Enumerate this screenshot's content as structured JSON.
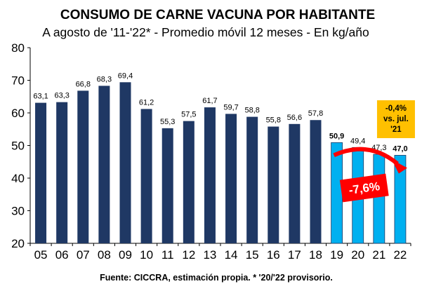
{
  "title": "CONSUMO DE CARNE VACUNA POR HABITANTE",
  "subtitle": "A agosto de '11-'22* - Promedio móvil 12 meses -  En kg/año",
  "source": "Fuente: CICCRA, estimación propia. * '20/'22 provisorio.",
  "colors": {
    "historical": "#1f3864",
    "recent": "#00b0f0",
    "note_bg": "#ffc000",
    "change_bg": "#ff0000"
  },
  "chart_data": {
    "type": "bar",
    "categories": [
      "05",
      "06",
      "07",
      "08",
      "09",
      "10",
      "11",
      "12",
      "13",
      "14",
      "15",
      "16",
      "17",
      "18",
      "19",
      "20",
      "21",
      "22"
    ],
    "values": [
      63.1,
      63.3,
      66.8,
      68.3,
      69.4,
      61.2,
      55.3,
      57.5,
      61.7,
      59.7,
      58.8,
      55.8,
      56.6,
      57.8,
      50.9,
      49.4,
      47.3,
      47.0
    ],
    "labels": [
      "63,1",
      "63,3",
      "66,8",
      "68,3",
      "69,4",
      "61,2",
      "55,3",
      "57,5",
      "61,7",
      "59,7",
      "58,8",
      "55,8",
      "56,6",
      "57,8",
      "50,9",
      "49,4",
      "47,3",
      "47,0"
    ],
    "bold_labels": [
      "19",
      "22"
    ],
    "highlight_categories": [
      "19",
      "20",
      "21",
      "22"
    ],
    "ylim": [
      20,
      80
    ],
    "yticks": [
      20,
      30,
      40,
      50,
      60,
      70,
      80
    ],
    "grid": false,
    "annotations": {
      "note_lines": [
        "-0,4%",
        "vs. jul.",
        "'21"
      ],
      "change": "-7,6%"
    }
  }
}
